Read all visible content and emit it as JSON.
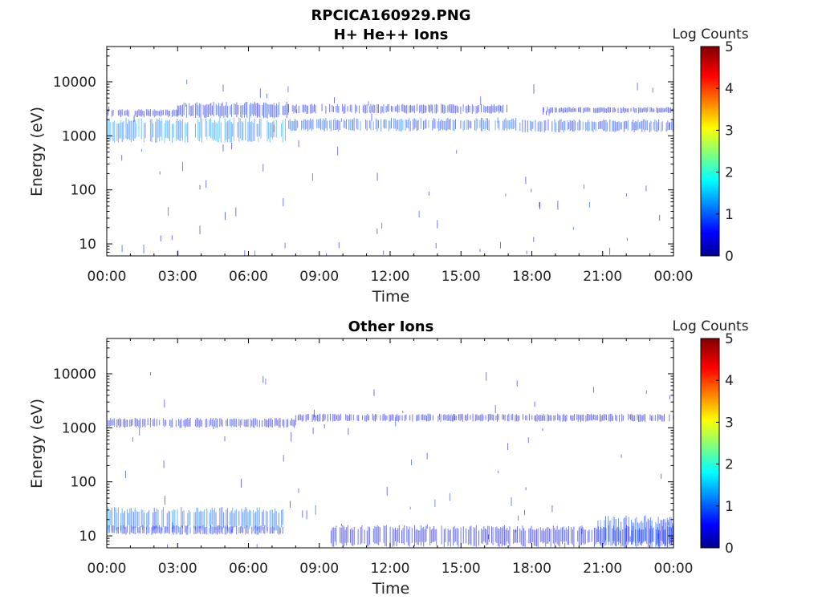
{
  "figure": {
    "title_line1": "RPCICA160929.PNG"
  },
  "chart_data": [
    {
      "type": "heatmap",
      "title": "H+ He++ Ions",
      "xlabel": "Time",
      "ylabel": "Energy (eV)",
      "y_scale": "log",
      "ylim": [
        6,
        45000
      ],
      "x_ticks": [
        "00:00",
        "03:00",
        "06:00",
        "09:00",
        "12:00",
        "15:00",
        "18:00",
        "21:00",
        "00:00"
      ],
      "y_ticks": [
        {
          "value": 10,
          "label": "10"
        },
        {
          "value": 100,
          "label": "100"
        },
        {
          "value": 1000,
          "label": "1000"
        },
        {
          "value": 10000,
          "label": "10000"
        }
      ],
      "colorbar": {
        "label": "Log Counts",
        "min": 0,
        "max": 5,
        "ticks": [
          "0",
          "1",
          "2",
          "3",
          "4",
          "5"
        ]
      },
      "bands": [
        {
          "t_start": 0.0,
          "t_end": 7.7,
          "e_low": 850,
          "e_high": 1900,
          "log_counts": 1.25
        },
        {
          "t_start": 7.7,
          "t_end": 17.5,
          "e_low": 1300,
          "e_high": 2000,
          "log_counts": 1.0
        },
        {
          "t_start": 17.5,
          "t_end": 24.0,
          "e_low": 1250,
          "e_high": 1900,
          "log_counts": 0.9
        },
        {
          "t_start": 0.0,
          "t_end": 3.0,
          "e_low": 2300,
          "e_high": 3000,
          "log_counts": 0.6
        },
        {
          "t_start": 3.0,
          "t_end": 7.7,
          "e_low": 2300,
          "e_high": 3900,
          "log_counts": 0.75
        },
        {
          "t_start": 7.7,
          "t_end": 17.0,
          "e_low": 2700,
          "e_high": 3700,
          "log_counts": 0.6
        },
        {
          "t_start": 18.5,
          "t_end": 24.0,
          "e_low": 2700,
          "e_high": 3300,
          "log_counts": 0.45
        }
      ],
      "speckle_density": 0.35
    },
    {
      "type": "heatmap",
      "title": "Other Ions",
      "xlabel": "Time",
      "ylabel": "Energy (eV)",
      "y_scale": "log",
      "ylim": [
        6,
        45000
      ],
      "x_ticks": [
        "00:00",
        "03:00",
        "06:00",
        "09:00",
        "12:00",
        "15:00",
        "18:00",
        "21:00",
        "00:00"
      ],
      "y_ticks": [
        {
          "value": 10,
          "label": "10"
        },
        {
          "value": 100,
          "label": "100"
        },
        {
          "value": 1000,
          "label": "1000"
        },
        {
          "value": 10000,
          "label": "10000"
        }
      ],
      "colorbar": {
        "label": "Log Counts",
        "min": 0,
        "max": 5,
        "ticks": [
          "0",
          "1",
          "2",
          "3",
          "4",
          "5"
        ]
      },
      "bands": [
        {
          "t_start": 0.0,
          "t_end": 8.0,
          "e_low": 1050,
          "e_high": 1450,
          "log_counts": 0.6
        },
        {
          "t_start": 8.0,
          "t_end": 24.0,
          "e_low": 1350,
          "e_high": 1750,
          "log_counts": 0.45
        },
        {
          "t_start": 0.0,
          "t_end": 7.5,
          "e_low": 14,
          "e_high": 30,
          "log_counts": 1.1
        },
        {
          "t_start": 0.0,
          "t_end": 7.5,
          "e_low": 11,
          "e_high": 15,
          "log_counts": 0.7
        },
        {
          "t_start": 9.5,
          "t_end": 24.0,
          "e_low": 7,
          "e_high": 14,
          "log_counts": 0.55
        },
        {
          "t_start": 20.8,
          "t_end": 24.0,
          "e_low": 7,
          "e_high": 20,
          "log_counts": 0.9
        }
      ],
      "speckle_density": 0.3
    }
  ]
}
